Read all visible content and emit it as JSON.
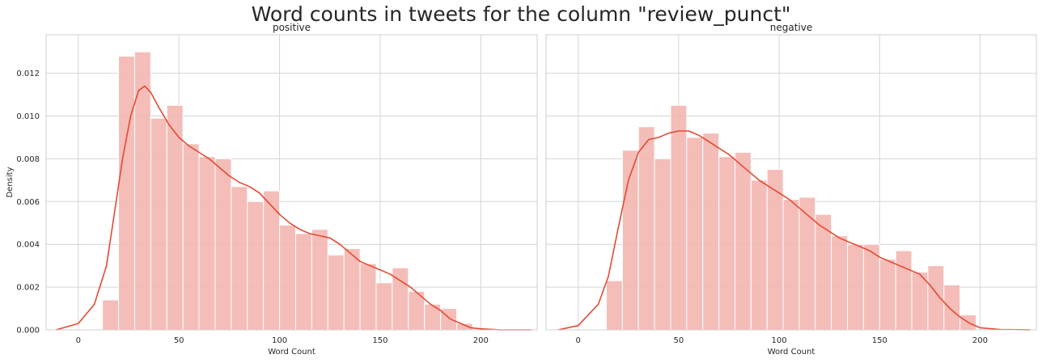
{
  "figure": {
    "suptitle": "Word counts in tweets for the column \"review_punct\""
  },
  "colors": {
    "bar_fill": "#f4b6b0",
    "kde_line": "#e34a33",
    "grid": "#d4d4d4",
    "axis_frame": "#cfcfcf",
    "text": "#262626"
  },
  "chart_data": [
    {
      "type": "bar",
      "subtype": "histogram+kde",
      "title": "positive",
      "xlabel": "Word Count",
      "ylabel": "Density",
      "xlim": [
        -16,
        228
      ],
      "ylim": [
        0,
        0.0138
      ],
      "xticks": [
        0,
        50,
        100,
        150,
        200
      ],
      "yticks": [
        0.0,
        0.002,
        0.004,
        0.006,
        0.008,
        0.01,
        0.012
      ],
      "ytick_labels": [
        "0.000",
        "0.002",
        "0.004",
        "0.006",
        "0.008",
        "0.010",
        "0.012"
      ],
      "grid": true,
      "bins": [
        {
          "x0": 12,
          "x1": 20,
          "value": 0.0014
        },
        {
          "x0": 20,
          "x1": 28,
          "value": 0.0128
        },
        {
          "x0": 28,
          "x1": 36,
          "value": 0.013
        },
        {
          "x0": 36,
          "x1": 44,
          "value": 0.0099
        },
        {
          "x0": 44,
          "x1": 52,
          "value": 0.0105
        },
        {
          "x0": 52,
          "x1": 60,
          "value": 0.0087
        },
        {
          "x0": 60,
          "x1": 68,
          "value": 0.0081
        },
        {
          "x0": 68,
          "x1": 76,
          "value": 0.008
        },
        {
          "x0": 76,
          "x1": 84,
          "value": 0.0067
        },
        {
          "x0": 84,
          "x1": 92,
          "value": 0.006
        },
        {
          "x0": 92,
          "x1": 100,
          "value": 0.0065
        },
        {
          "x0": 100,
          "x1": 108,
          "value": 0.0049
        },
        {
          "x0": 108,
          "x1": 116,
          "value": 0.0045
        },
        {
          "x0": 116,
          "x1": 124,
          "value": 0.0047
        },
        {
          "x0": 124,
          "x1": 132,
          "value": 0.0035
        },
        {
          "x0": 132,
          "x1": 140,
          "value": 0.0038
        },
        {
          "x0": 140,
          "x1": 148,
          "value": 0.0031
        },
        {
          "x0": 148,
          "x1": 156,
          "value": 0.0022
        },
        {
          "x0": 156,
          "x1": 164,
          "value": 0.0029
        },
        {
          "x0": 164,
          "x1": 172,
          "value": 0.0018
        },
        {
          "x0": 172,
          "x1": 180,
          "value": 0.0012
        },
        {
          "x0": 180,
          "x1": 188,
          "value": 0.001
        },
        {
          "x0": 188,
          "x1": 196,
          "value": 0.0003
        }
      ],
      "kde": {
        "x": [
          -11,
          0,
          8,
          14,
          18,
          22,
          26,
          30,
          33,
          36,
          40,
          45,
          50,
          55,
          60,
          65,
          70,
          75,
          80,
          85,
          90,
          95,
          100,
          105,
          110,
          115,
          120,
          125,
          130,
          135,
          140,
          145,
          150,
          155,
          160,
          165,
          170,
          175,
          180,
          185,
          190,
          195,
          200,
          210,
          225
        ],
        "y": [
          0.0,
          0.0003,
          0.0012,
          0.003,
          0.0055,
          0.008,
          0.01,
          0.0112,
          0.0114,
          0.0111,
          0.0104,
          0.0096,
          0.009,
          0.0086,
          0.0083,
          0.008,
          0.0076,
          0.0072,
          0.0069,
          0.0067,
          0.0064,
          0.0059,
          0.0054,
          0.005,
          0.0047,
          0.0045,
          0.0044,
          0.0043,
          0.004,
          0.0036,
          0.0032,
          0.003,
          0.0028,
          0.0026,
          0.0023,
          0.002,
          0.0016,
          0.0012,
          0.0009,
          0.0005,
          0.0003,
          0.0001,
          5e-05,
          0.0,
          0.0
        ]
      }
    },
    {
      "type": "bar",
      "subtype": "histogram+kde",
      "title": "negative",
      "xlabel": "Word Count",
      "ylabel": "",
      "xlim": [
        -16,
        228
      ],
      "ylim": [
        0,
        0.0138
      ],
      "xticks": [
        0,
        50,
        100,
        150,
        200
      ],
      "yticks": [
        0.0,
        0.002,
        0.004,
        0.006,
        0.008,
        0.01,
        0.012
      ],
      "grid": true,
      "bins": [
        {
          "x0": 14,
          "x1": 22,
          "value": 0.0023
        },
        {
          "x0": 22,
          "x1": 30,
          "value": 0.0084
        },
        {
          "x0": 30,
          "x1": 38,
          "value": 0.0095
        },
        {
          "x0": 38,
          "x1": 46,
          "value": 0.008
        },
        {
          "x0": 46,
          "x1": 54,
          "value": 0.0105
        },
        {
          "x0": 54,
          "x1": 62,
          "value": 0.009
        },
        {
          "x0": 62,
          "x1": 70,
          "value": 0.0092
        },
        {
          "x0": 70,
          "x1": 78,
          "value": 0.0081
        },
        {
          "x0": 78,
          "x1": 86,
          "value": 0.0083
        },
        {
          "x0": 86,
          "x1": 94,
          "value": 0.007
        },
        {
          "x0": 94,
          "x1": 102,
          "value": 0.0075
        },
        {
          "x0": 102,
          "x1": 110,
          "value": 0.0061
        },
        {
          "x0": 110,
          "x1": 118,
          "value": 0.0062
        },
        {
          "x0": 118,
          "x1": 126,
          "value": 0.0054
        },
        {
          "x0": 126,
          "x1": 134,
          "value": 0.0044
        },
        {
          "x0": 134,
          "x1": 142,
          "value": 0.004
        },
        {
          "x0": 142,
          "x1": 150,
          "value": 0.004
        },
        {
          "x0": 150,
          "x1": 158,
          "value": 0.0033
        },
        {
          "x0": 158,
          "x1": 166,
          "value": 0.0037
        },
        {
          "x0": 166,
          "x1": 174,
          "value": 0.0027
        },
        {
          "x0": 174,
          "x1": 182,
          "value": 0.003
        },
        {
          "x0": 182,
          "x1": 190,
          "value": 0.0021
        },
        {
          "x0": 190,
          "x1": 198,
          "value": 0.0007
        }
      ],
      "kde": {
        "x": [
          -10,
          0,
          10,
          15,
          20,
          25,
          30,
          35,
          40,
          45,
          50,
          55,
          60,
          65,
          70,
          75,
          80,
          85,
          90,
          95,
          100,
          105,
          110,
          115,
          120,
          125,
          130,
          135,
          140,
          145,
          150,
          155,
          160,
          165,
          170,
          175,
          180,
          185,
          190,
          195,
          200,
          210,
          225
        ],
        "y": [
          0.0,
          0.0002,
          0.0012,
          0.0025,
          0.0048,
          0.007,
          0.0083,
          0.0089,
          0.009,
          0.0092,
          0.0093,
          0.0093,
          0.0091,
          0.0088,
          0.0085,
          0.0082,
          0.0078,
          0.0074,
          0.007,
          0.0067,
          0.0064,
          0.0061,
          0.0057,
          0.0053,
          0.0049,
          0.0046,
          0.0043,
          0.0041,
          0.0039,
          0.0037,
          0.0034,
          0.0032,
          0.003,
          0.0028,
          0.0026,
          0.0021,
          0.0015,
          0.001,
          0.0006,
          0.0003,
          0.0001,
          2e-05,
          0.0
        ]
      }
    }
  ]
}
